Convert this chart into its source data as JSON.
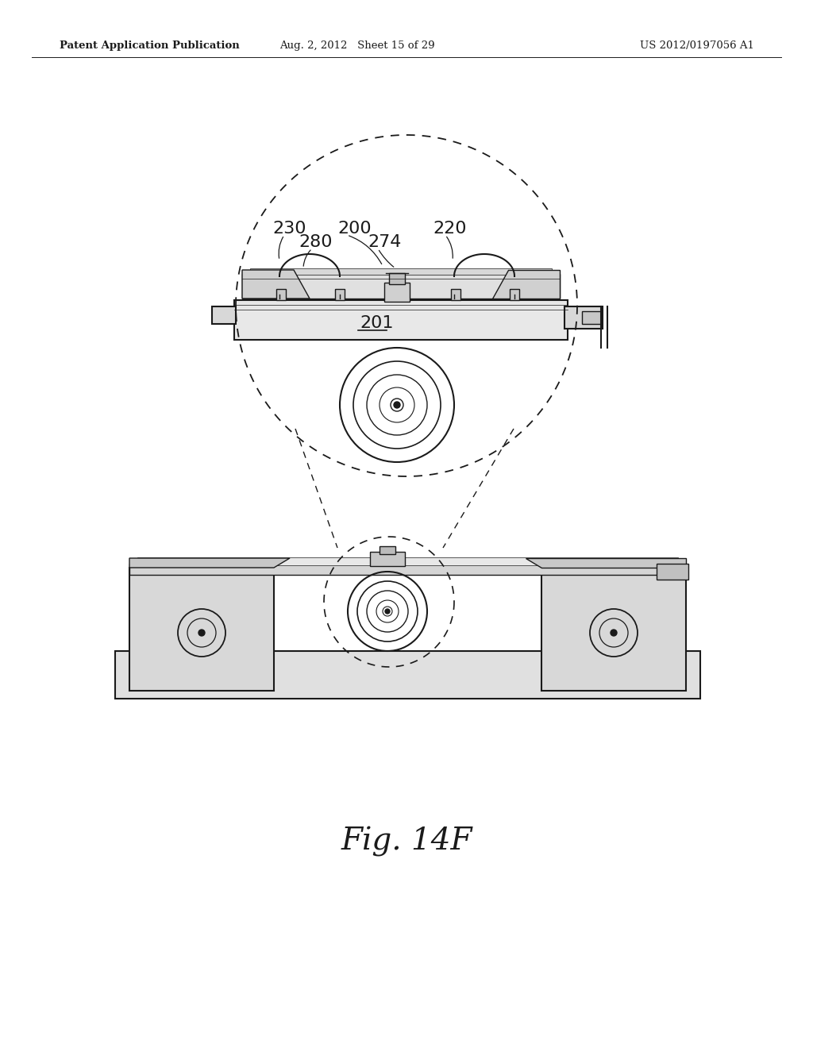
{
  "bg_color": "#ffffff",
  "header_left": "Patent Application Publication",
  "header_mid": "Aug. 2, 2012   Sheet 15 of 29",
  "header_right": "US 2012/0197056 A1",
  "caption": "Fig. 14F",
  "color_dark": "#1a1a1a",
  "color_mid": "#888888",
  "color_light": "#cccccc",
  "color_fill": "#f0f0f0"
}
